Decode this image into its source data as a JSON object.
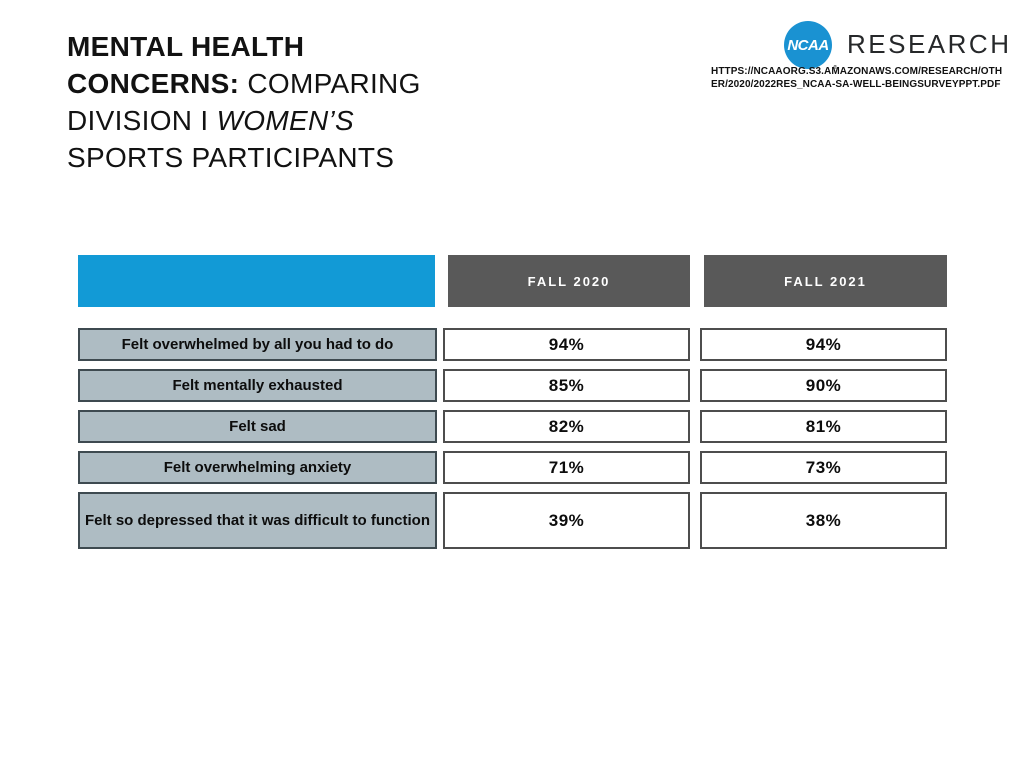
{
  "title": {
    "line1_bold": "MENTAL HEALTH",
    "line2_bold": "CONCERNS:",
    "line2_regular": " COMPARING",
    "line3_regular": "DIVISION I ",
    "line3_italic": "WOMEN’S",
    "line4_regular": "SPORTS PARTICIPANTS"
  },
  "branding": {
    "logo_text": "NCAA",
    "logo_reg": "®",
    "wordmark": "RESEARCH",
    "url_line1": "HTTPS://NCAAORG.S3.AMAZONAWS.COM/RESEARCH/OTH",
    "url_line2": "ER/2020/2022RES_NCAA-SA-WELL-BEINGSURVEYPPT.PDF"
  },
  "colors": {
    "accent_blue": "#129ad6",
    "logo_blue": "#1a92d2",
    "header_gray": "#595959",
    "label_bg": "#aebcc3",
    "label_border": "#3e4a50",
    "value_border": "#4d4d4d"
  },
  "chart_data": {
    "type": "table",
    "title": "Mental Health Concerns: Comparing Division I Women’s Sports Participants",
    "columns": [
      "",
      "FALL 2020",
      "FALL 2021"
    ],
    "rows": [
      {
        "label": "Felt overwhelmed by all you had to do",
        "fall_2020": "94%",
        "fall_2021": "94%"
      },
      {
        "label": "Felt mentally exhausted",
        "fall_2020": "85%",
        "fall_2021": "90%"
      },
      {
        "label": "Felt sad",
        "fall_2020": "82%",
        "fall_2021": "81%"
      },
      {
        "label": "Felt overwhelming anxiety",
        "fall_2020": "71%",
        "fall_2021": "73%"
      },
      {
        "label": "Felt so depressed that it was difficult to function",
        "fall_2020": "39%",
        "fall_2021": "38%"
      }
    ]
  }
}
